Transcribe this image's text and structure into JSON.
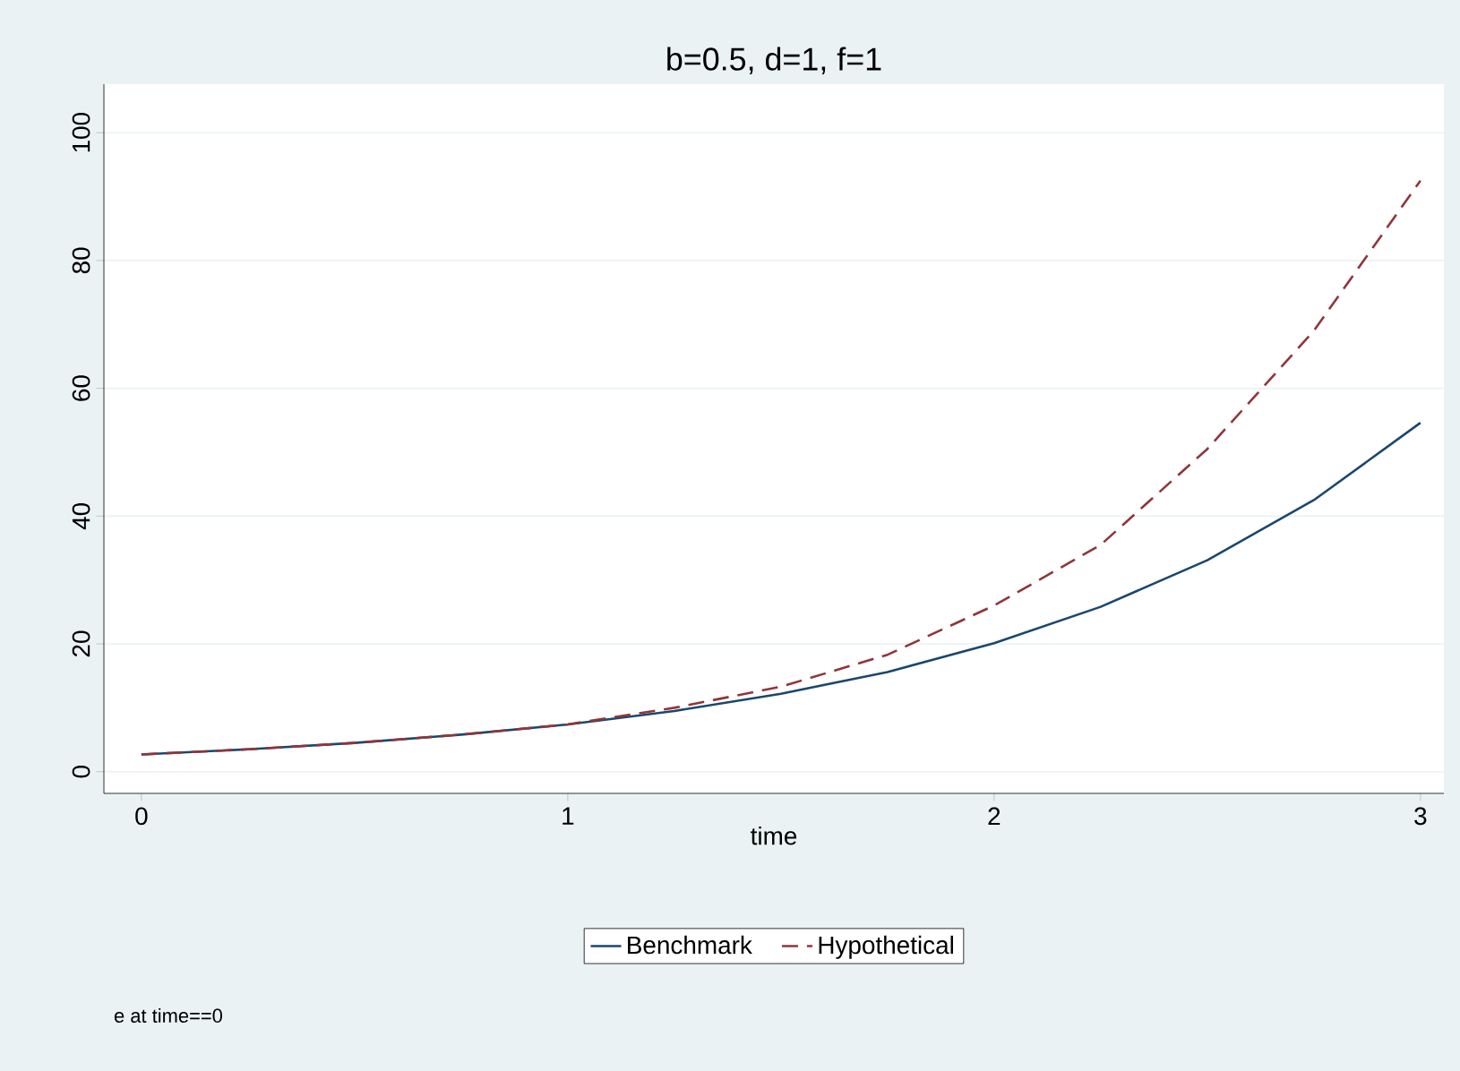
{
  "chart_data": {
    "type": "line",
    "title": "b=0.5, d=1, f=1",
    "xlabel": "time",
    "annotations": [
      "e at time==0"
    ],
    "x": [
      0,
      0.25,
      0.5,
      0.75,
      1,
      1.25,
      1.5,
      1.75,
      2,
      2.25,
      2.5,
      2.75,
      3
    ],
    "series": [
      {
        "name": "Benchmark",
        "color": "#1a476f",
        "line_style": "solid",
        "values": [
          2.7,
          3.5,
          4.5,
          5.8,
          7.4,
          9.5,
          12.2,
          15.6,
          20.1,
          25.8,
          33.1,
          42.5,
          54.6
        ]
      },
      {
        "name": "Hypothetical",
        "color": "#90353b",
        "line_style": "dashed",
        "values": [
          2.7,
          3.5,
          4.5,
          5.8,
          7.4,
          10.0,
          13.3,
          18.3,
          26.0,
          35.5,
          50.5,
          69.0,
          92.5
        ]
      }
    ],
    "xlim": [
      -0.088,
      3.055
    ],
    "ylim": [
      -3.4,
      107.6
    ],
    "xticks": [
      0,
      1,
      2,
      3
    ],
    "yticks": [
      0,
      20,
      40,
      60,
      80,
      100
    ],
    "grid": "y",
    "legend": "bottom"
  }
}
